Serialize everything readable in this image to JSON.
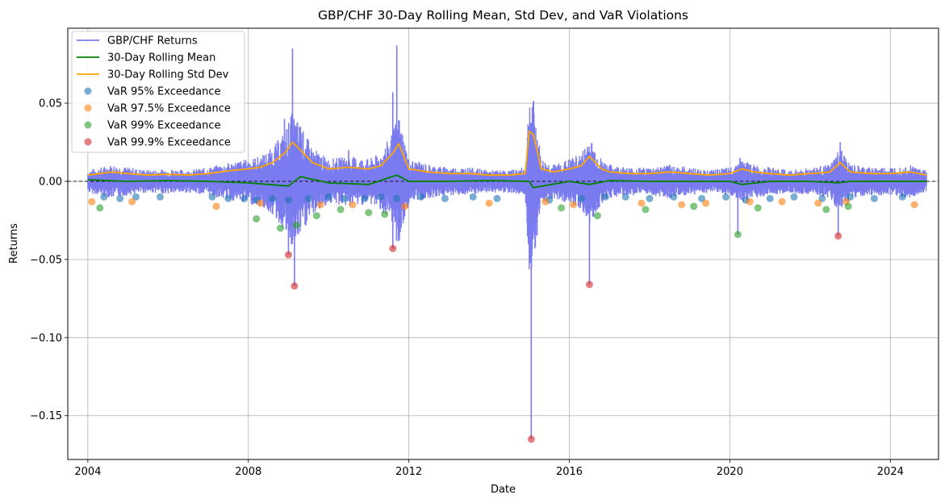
{
  "chart_data": {
    "type": "line",
    "title": "GBP/CHF 30-Day Rolling Mean, Std Dev, and VaR Violations",
    "xlabel": "Date",
    "ylabel": "Returns",
    "xlim": [
      2003.5,
      2025.2
    ],
    "ylim": [
      -0.178,
      0.098
    ],
    "x_ticks": [
      2004,
      2008,
      2012,
      2016,
      2020,
      2024
    ],
    "x_tick_labels": [
      "2004",
      "2008",
      "2012",
      "2016",
      "2020",
      "2024"
    ],
    "y_ticks": [
      0.05,
      0.0,
      -0.05,
      -0.1,
      -0.15
    ],
    "y_tick_labels": [
      "0.05",
      "0.00",
      "−0.05",
      "−0.10",
      "−0.15"
    ],
    "grid": true,
    "zero_line": 0.0,
    "legend_position": "upper-left",
    "legend": [
      {
        "label": "GBP/CHF Returns",
        "kind": "line",
        "color": "#7b7bf0"
      },
      {
        "label": "30-Day Rolling Mean",
        "kind": "line",
        "color": "#008000"
      },
      {
        "label": "30-Day Rolling Std Dev",
        "kind": "line",
        "color": "#ffa500"
      },
      {
        "label": "VaR 95% Exceedance",
        "kind": "marker",
        "color": "#1f77b4"
      },
      {
        "label": "VaR 97.5% Exceedance",
        "kind": "marker",
        "color": "#ff7f0e"
      },
      {
        "label": "VaR 99% Exceedance",
        "kind": "marker",
        "color": "#2ca02c"
      },
      {
        "label": "VaR 99.9% Exceedance",
        "kind": "marker",
        "color": "#d62728"
      }
    ],
    "spikes": [
      {
        "x": 2008.9,
        "y": 0.04
      },
      {
        "x": 2009.1,
        "y": 0.085
      },
      {
        "x": 2009.3,
        "y": 0.035
      },
      {
        "x": 2010.5,
        "y": 0.02
      },
      {
        "x": 2011.6,
        "y": 0.057
      },
      {
        "x": 2011.7,
        "y": 0.087
      },
      {
        "x": 2011.8,
        "y": 0.03
      },
      {
        "x": 2015.05,
        "y": 0.03
      },
      {
        "x": 2016.45,
        "y": 0.022
      },
      {
        "x": 2016.6,
        "y": 0.015
      },
      {
        "x": 2022.75,
        "y": 0.025
      },
      {
        "x": 2020.25,
        "y": 0.015
      },
      {
        "x": 2009.0,
        "y": -0.047
      },
      {
        "x": 2009.15,
        "y": -0.067
      },
      {
        "x": 2011.6,
        "y": -0.043
      },
      {
        "x": 2015.05,
        "y": -0.165
      },
      {
        "x": 2016.5,
        "y": -0.066
      },
      {
        "x": 2020.2,
        "y": -0.034
      },
      {
        "x": 2022.7,
        "y": -0.035
      }
    ],
    "series": [
      {
        "name": "30-Day Rolling Std Dev",
        "x": [
          2004.0,
          2004.3,
          2004.6,
          2005.0,
          2005.5,
          2006.0,
          2006.5,
          2007.0,
          2007.3,
          2007.6,
          2008.0,
          2008.3,
          2008.6,
          2008.9,
          2009.1,
          2009.3,
          2009.6,
          2010.0,
          2010.5,
          2011.0,
          2011.3,
          2011.6,
          2011.75,
          2012.0,
          2012.5,
          2013.0,
          2013.5,
          2014.0,
          2014.5,
          2014.9,
          2015.0,
          2015.1,
          2015.3,
          2015.6,
          2016.0,
          2016.3,
          2016.5,
          2016.8,
          2017.0,
          2017.5,
          2018.0,
          2018.5,
          2019.0,
          2019.5,
          2020.0,
          2020.3,
          2020.6,
          2021.0,
          2021.5,
          2022.0,
          2022.5,
          2022.75,
          2023.0,
          2023.5,
          2024.0,
          2024.5,
          2024.9
        ],
        "values": [
          0.004,
          0.005,
          0.006,
          0.005,
          0.004,
          0.0045,
          0.004,
          0.005,
          0.006,
          0.007,
          0.008,
          0.009,
          0.012,
          0.018,
          0.025,
          0.02,
          0.012,
          0.008,
          0.009,
          0.008,
          0.01,
          0.018,
          0.024,
          0.008,
          0.006,
          0.005,
          0.005,
          0.004,
          0.004,
          0.005,
          0.032,
          0.03,
          0.008,
          0.006,
          0.008,
          0.01,
          0.016,
          0.008,
          0.006,
          0.005,
          0.005,
          0.006,
          0.005,
          0.004,
          0.005,
          0.008,
          0.006,
          0.005,
          0.004,
          0.005,
          0.006,
          0.012,
          0.006,
          0.005,
          0.005,
          0.006,
          0.004
        ]
      },
      {
        "name": "30-Day Rolling Mean",
        "x": [
          2004.0,
          2005.0,
          2006.0,
          2007.0,
          2008.0,
          2008.5,
          2009.0,
          2009.3,
          2010.0,
          2011.0,
          2011.7,
          2012.0,
          2013.0,
          2014.0,
          2015.0,
          2015.1,
          2016.0,
          2016.5,
          2017.0,
          2018.0,
          2019.0,
          2020.0,
          2020.3,
          2021.0,
          2022.0,
          2022.7,
          2023.0,
          2024.0,
          2024.9
        ],
        "values": [
          0.001,
          0.0,
          0.0005,
          0.0,
          -0.001,
          -0.002,
          -0.003,
          0.003,
          -0.001,
          -0.002,
          0.004,
          0.0,
          0.0,
          0.0005,
          0.0,
          -0.004,
          0.0,
          -0.002,
          0.0005,
          0.0,
          0.0,
          0.0,
          -0.002,
          0.0,
          0.0,
          -0.001,
          0.0,
          0.0,
          0.0
        ]
      }
    ],
    "exceedances": [
      {
        "name": "VaR 95% Exceedance",
        "points": [
          [
            2004.4,
            -0.01
          ],
          [
            2004.8,
            -0.011
          ],
          [
            2005.2,
            -0.01
          ],
          [
            2005.8,
            -0.01
          ],
          [
            2007.1,
            -0.01
          ],
          [
            2007.5,
            -0.011
          ],
          [
            2007.9,
            -0.011
          ],
          [
            2008.2,
            -0.012
          ],
          [
            2008.6,
            -0.011
          ],
          [
            2009.0,
            -0.012
          ],
          [
            2009.5,
            -0.011
          ],
          [
            2010.0,
            -0.01
          ],
          [
            2010.4,
            -0.011
          ],
          [
            2010.9,
            -0.011
          ],
          [
            2011.3,
            -0.01
          ],
          [
            2011.7,
            -0.011
          ],
          [
            2012.3,
            -0.01
          ],
          [
            2012.9,
            -0.011
          ],
          [
            2013.6,
            -0.01
          ],
          [
            2014.2,
            -0.011
          ],
          [
            2015.5,
            -0.012
          ],
          [
            2016.3,
            -0.011
          ],
          [
            2016.9,
            -0.01
          ],
          [
            2017.4,
            -0.01
          ],
          [
            2018.0,
            -0.011
          ],
          [
            2018.6,
            -0.01
          ],
          [
            2019.3,
            -0.011
          ],
          [
            2019.9,
            -0.01
          ],
          [
            2020.4,
            -0.012
          ],
          [
            2021.0,
            -0.011
          ],
          [
            2021.6,
            -0.01
          ],
          [
            2022.3,
            -0.011
          ],
          [
            2023.0,
            -0.01
          ],
          [
            2023.6,
            -0.011
          ],
          [
            2024.3,
            -0.01
          ]
        ]
      },
      {
        "name": "VaR 97.5% Exceedance",
        "points": [
          [
            2004.1,
            -0.013
          ],
          [
            2005.1,
            -0.013
          ],
          [
            2007.2,
            -0.016
          ],
          [
            2008.3,
            -0.014
          ],
          [
            2009.8,
            -0.015
          ],
          [
            2010.6,
            -0.015
          ],
          [
            2011.9,
            -0.016
          ],
          [
            2014.0,
            -0.014
          ],
          [
            2015.4,
            -0.013
          ],
          [
            2016.1,
            -0.015
          ],
          [
            2017.8,
            -0.014
          ],
          [
            2018.8,
            -0.015
          ],
          [
            2019.4,
            -0.014
          ],
          [
            2020.5,
            -0.013
          ],
          [
            2021.3,
            -0.013
          ],
          [
            2022.2,
            -0.014
          ],
          [
            2022.9,
            -0.013
          ],
          [
            2024.6,
            -0.015
          ]
        ]
      },
      {
        "name": "VaR 99% Exceedance",
        "points": [
          [
            2004.3,
            -0.017
          ],
          [
            2008.2,
            -0.024
          ],
          [
            2008.8,
            -0.03
          ],
          [
            2009.2,
            -0.028
          ],
          [
            2009.7,
            -0.022
          ],
          [
            2010.3,
            -0.018
          ],
          [
            2011.0,
            -0.02
          ],
          [
            2011.4,
            -0.021
          ],
          [
            2015.8,
            -0.017
          ],
          [
            2016.7,
            -0.022
          ],
          [
            2017.9,
            -0.018
          ],
          [
            2019.1,
            -0.016
          ],
          [
            2020.2,
            -0.034
          ],
          [
            2020.7,
            -0.017
          ],
          [
            2022.4,
            -0.018
          ],
          [
            2022.95,
            -0.016
          ]
        ]
      },
      {
        "name": "VaR 99.9% Exceedance",
        "points": [
          [
            2009.0,
            -0.047
          ],
          [
            2009.15,
            -0.067
          ],
          [
            2011.6,
            -0.043
          ],
          [
            2015.05,
            -0.165
          ],
          [
            2016.5,
            -0.066
          ],
          [
            2022.7,
            -0.035
          ]
        ]
      }
    ]
  }
}
